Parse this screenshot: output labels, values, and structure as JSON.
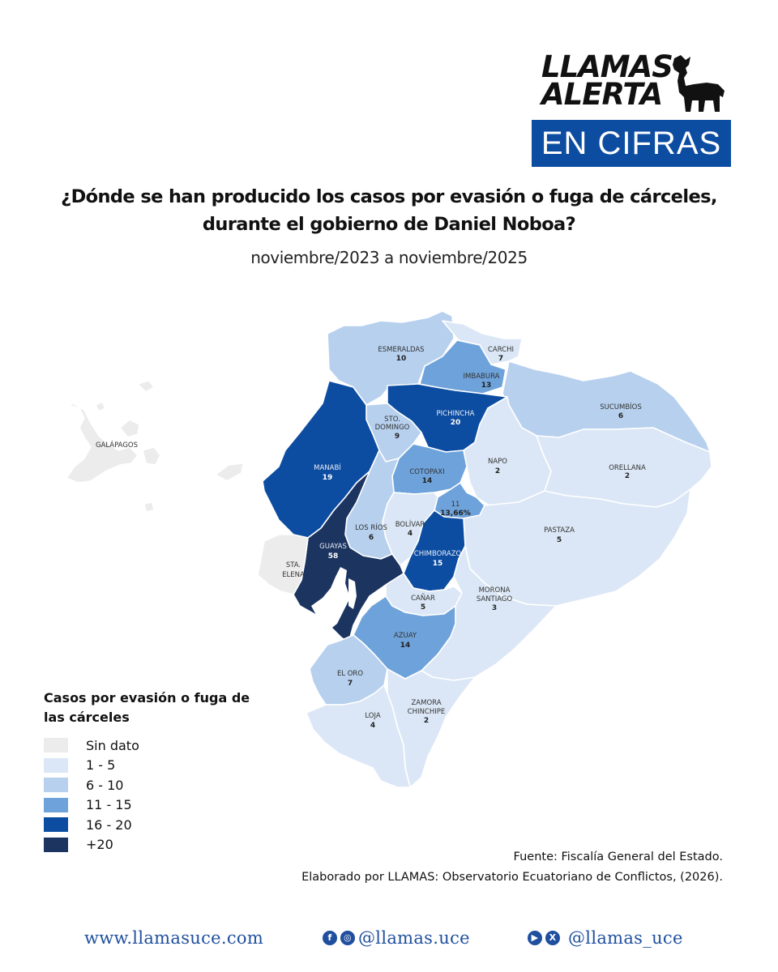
{
  "brand": {
    "line1": "LLAMAS",
    "line2": "ALERTA",
    "badge": "EN CIFRAS"
  },
  "title": "¿Dónde se han producido los casos por evasión o fuga de cárceles, durante el gobierno de Daniel Noboa?",
  "subtitle": "noviembre/2023 a noviembre/2025",
  "colors": {
    "sin_dato": "#ececec",
    "1_5": "#dbe7f6",
    "6_10": "#b6d0ee",
    "11_15": "#6ea2da",
    "16_20": "#0d4da1",
    "plus_20": "#1c3460",
    "accent": "#0d4da1"
  },
  "map": {
    "regions": [
      {
        "name": "ESMERALDAS",
        "value": "10"
      },
      {
        "name": "CARCHI",
        "value": "7"
      },
      {
        "name": "IMBABURA",
        "value": "13"
      },
      {
        "name": "SUCUMBÍOS",
        "value": "6"
      },
      {
        "name": "PICHINCHA",
        "value": "20"
      },
      {
        "name": "STO. DOMINGO",
        "value": "9"
      },
      {
        "name": "GALÁPAGOS",
        "value": ""
      },
      {
        "name": "MANABÍ",
        "value": "19"
      },
      {
        "name": "NAPO",
        "value": "2"
      },
      {
        "name": "ORELLANA",
        "value": "2"
      },
      {
        "name": "COTOPAXI",
        "value": "14"
      },
      {
        "name": "11",
        "value": "13,66%"
      },
      {
        "name": "LOS RÍOS",
        "value": "6"
      },
      {
        "name": "BOLÍVAR",
        "value": "4"
      },
      {
        "name": "PASTAZA",
        "value": "5"
      },
      {
        "name": "GUAYAS",
        "value": "58"
      },
      {
        "name": "STA. ELENA",
        "value": ""
      },
      {
        "name": "CHIMBORAZO",
        "value": "15"
      },
      {
        "name": "CAÑAR",
        "value": "5"
      },
      {
        "name": "MORONA SANTIAGO",
        "value": "3"
      },
      {
        "name": "AZUAY",
        "value": "14"
      },
      {
        "name": "EL ORO",
        "value": "7"
      },
      {
        "name": "ZAMORA CHINCHIPE",
        "value": "2"
      },
      {
        "name": "LOJA",
        "value": "4"
      }
    ]
  },
  "legend": {
    "title": "Casos por evasión o fuga de las cárceles",
    "items": [
      {
        "label": "Sin dato",
        "color": "#ececec"
      },
      {
        "label": "1 - 5",
        "color": "#dbe7f6"
      },
      {
        "label": "6 - 10",
        "color": "#b6d0ee"
      },
      {
        "label": "11 - 15",
        "color": "#6ea2da"
      },
      {
        "label": "16 - 20",
        "color": "#0d4da1"
      },
      {
        "label": "+20",
        "color": "#1c3460"
      }
    ]
  },
  "source": {
    "line1": "Fuente: Fiscalía General del Estado.",
    "line2": "Elaborado por LLAMAS: Observatorio Ecuatoriano de Conflictos, (2026)."
  },
  "footer": {
    "website": "www.llamasuce.com",
    "social1": "@llamas.uce",
    "social2": "@llamas_uce",
    "icons": [
      "facebook-icon",
      "instagram-icon",
      "youtube-icon",
      "x-icon"
    ]
  }
}
